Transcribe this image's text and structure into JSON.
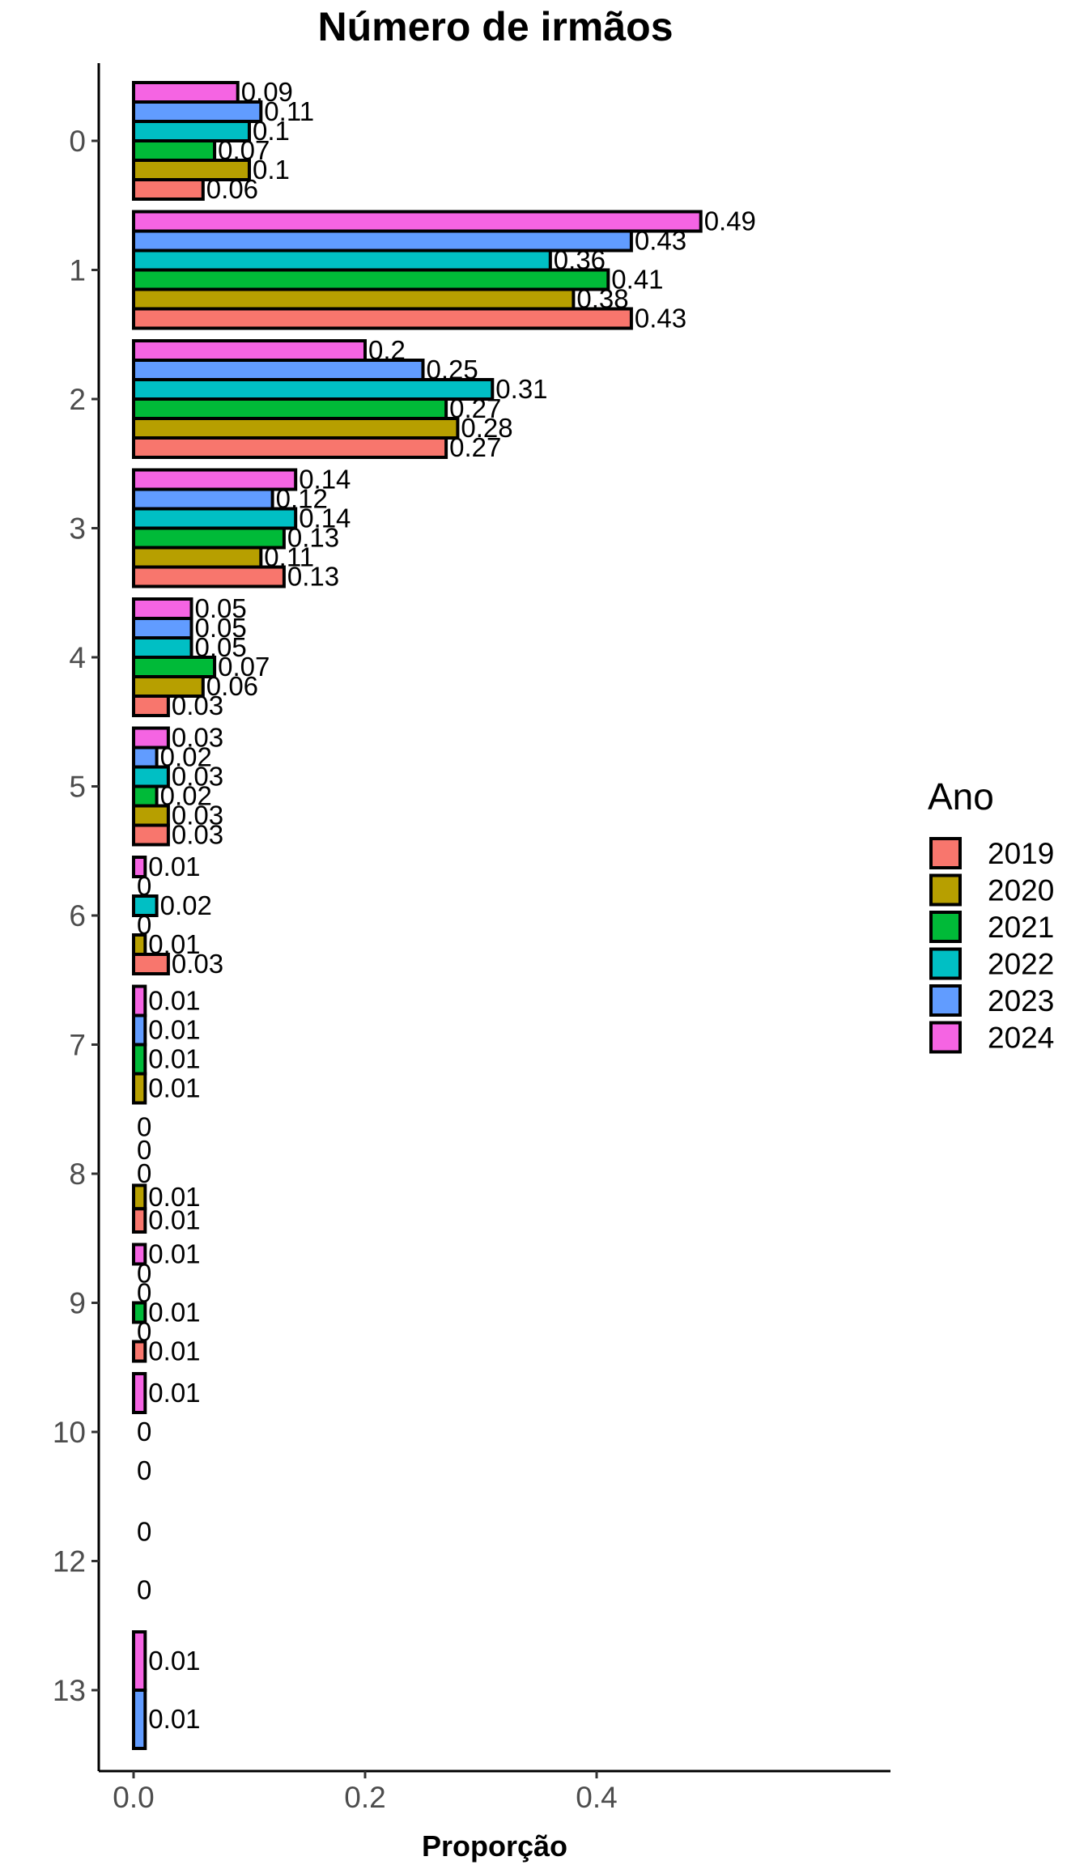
{
  "chart_data": {
    "type": "bar",
    "orientation": "horizontal",
    "title": "Número de irmãos",
    "xlabel": "Proporção",
    "ylabel": "",
    "xlim": [
      -0.04,
      0.565
    ],
    "x_ticks": [
      0.0,
      0.2,
      0.4
    ],
    "x_tick_labels": [
      "0.0",
      "0.2",
      "0.4"
    ],
    "categories": [
      "0",
      "1",
      "2",
      "3",
      "4",
      "5",
      "6",
      "7",
      "8",
      "9",
      "10",
      "12",
      "13"
    ],
    "grid": false,
    "legend": {
      "title": "Ano",
      "placement": "right"
    },
    "series": [
      {
        "name": "2019",
        "color": "#F8766D",
        "values": [
          0.06,
          0.43,
          0.27,
          0.13,
          0.03,
          0.03,
          0.03,
          null,
          0.01,
          0.01,
          null,
          null,
          null
        ],
        "labels": [
          "0.06",
          "0.43",
          "0.27",
          "0.13",
          "0.03",
          "0.03",
          "0.03",
          null,
          "0.01",
          "0.01",
          null,
          null,
          null
        ]
      },
      {
        "name": "2020",
        "color": "#B79F00",
        "values": [
          0.1,
          0.38,
          0.28,
          0.11,
          0.06,
          0.03,
          0.01,
          0.01,
          0.01,
          0.0,
          0.0,
          null,
          null
        ],
        "labels": [
          "0.1",
          "0.38",
          "0.28",
          "0.11",
          "0.06",
          "0.03",
          "0.01",
          "0.01",
          "0.01",
          "0",
          "0",
          null,
          null
        ]
      },
      {
        "name": "2021",
        "color": "#00BA38",
        "values": [
          0.07,
          0.41,
          0.27,
          0.13,
          0.07,
          0.02,
          0.0,
          0.01,
          0.0,
          0.01,
          null,
          0.0,
          null
        ],
        "labels": [
          "0.07",
          "0.41",
          "0.27",
          "0.13",
          "0.07",
          "0.02",
          "0",
          "0.01",
          "0",
          "0.01",
          null,
          "0",
          null
        ]
      },
      {
        "name": "2022",
        "color": "#00BFC4",
        "values": [
          0.1,
          0.36,
          0.31,
          0.14,
          0.05,
          0.03,
          0.02,
          null,
          null,
          0.0,
          0.0,
          null,
          null
        ],
        "labels": [
          "0.1",
          "0.36",
          "0.31",
          "0.14",
          "0.05",
          "0.03",
          "0.02",
          null,
          null,
          "0",
          "0",
          null,
          null
        ]
      },
      {
        "name": "2023",
        "color": "#619CFF",
        "values": [
          0.11,
          0.43,
          0.25,
          0.12,
          0.05,
          0.02,
          0.0,
          0.01,
          0.0,
          0.0,
          null,
          0.0,
          0.01
        ],
        "labels": [
          "0.11",
          "0.43",
          "0.25",
          "0.12",
          "0.05",
          "0.02",
          "0",
          "0.01",
          "0",
          "0",
          null,
          "0",
          "0.01"
        ]
      },
      {
        "name": "2024",
        "color": "#F564E3",
        "values": [
          0.09,
          0.49,
          0.2,
          0.14,
          0.05,
          0.03,
          0.01,
          0.01,
          0.0,
          0.01,
          0.01,
          null,
          0.01
        ],
        "labels": [
          "0.09",
          "0.49",
          "0.2",
          "0.14",
          "0.05",
          "0.03",
          "0.01",
          "0.01",
          "0",
          "0.01",
          "0.01",
          null,
          "0.01"
        ]
      }
    ]
  }
}
